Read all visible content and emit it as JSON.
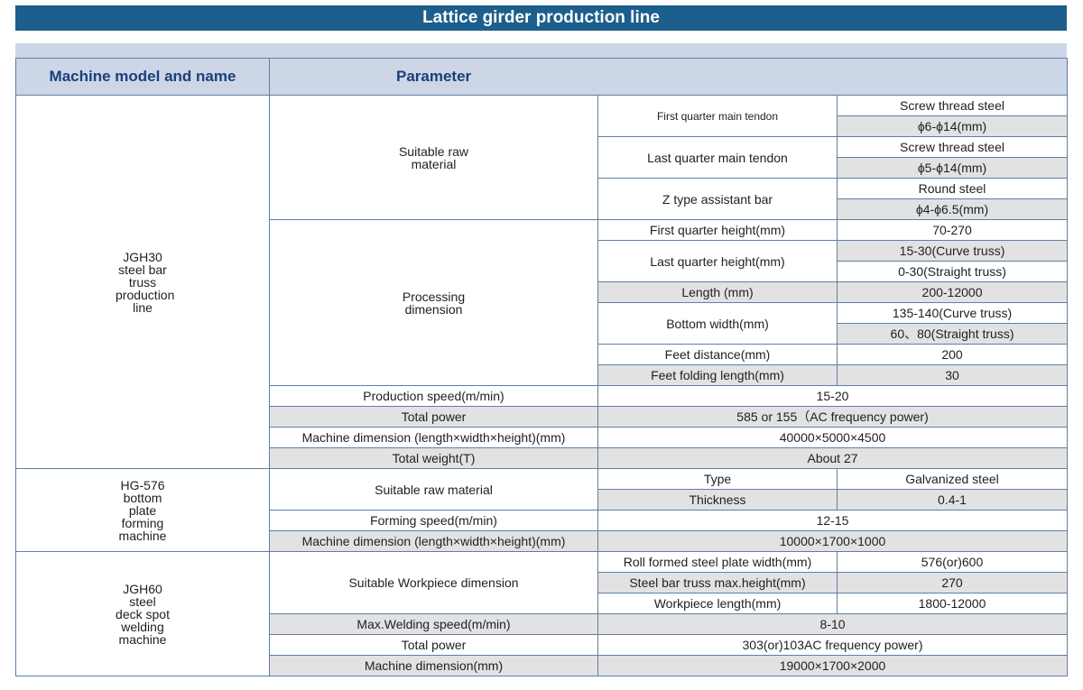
{
  "title": "Lattice girder production line",
  "header": {
    "model": "Machine model and name",
    "parameter": "Parameter"
  },
  "machines": {
    "m1": {
      "name": "JGH30 steel bar truss production line",
      "raw_material": {
        "label": "Suitable raw material",
        "first_quarter": {
          "label": "First quarter main tendon",
          "v1": "Screw thread steel",
          "v2": "ϕ6-ϕ14(mm)"
        },
        "last_quarter": {
          "label": "Last quarter main tendon",
          "v1": "Screw thread steel",
          "v2": "ϕ5-ϕ14(mm)"
        },
        "z_bar": {
          "label": "Z type assistant bar",
          "v1": "Round steel",
          "v2": "ϕ4-ϕ6.5(mm)"
        }
      },
      "processing": {
        "label": "Processing dimension",
        "first_height": {
          "label": "First quarter height(mm)",
          "v": "70-270"
        },
        "last_height": {
          "label": "Last quarter height(mm)",
          "v1": "15-30(Curve truss)",
          "v2": "0-30(Straight truss)"
        },
        "length": {
          "label": "Length (mm)",
          "v": "200-12000"
        },
        "bottom_width": {
          "label": "Bottom width(mm)",
          "v1": "135-140(Curve truss)",
          "v2": "60、80(Straight truss)"
        },
        "feet_distance": {
          "label": "Feet distance(mm)",
          "v": "200"
        },
        "feet_folding": {
          "label": "Feet folding length(mm)",
          "v": "30"
        }
      },
      "production_speed": {
        "label": "Production speed(m/min)",
        "v": "15-20"
      },
      "total_power": {
        "label": "Total power",
        "v": "585 or 155（AC frequency power)"
      },
      "dimension": {
        "label": "Machine dimension (length×width×height)(mm)",
        "v": "40000×5000×4500"
      },
      "weight": {
        "label": "Total weight(T)",
        "v": "About 27"
      }
    },
    "m2": {
      "name": "HG-576 bottom plate forming machine",
      "raw_material": {
        "label": "Suitable raw material",
        "type": {
          "label": "Type",
          "v": "Galvanized steel"
        },
        "thickness": {
          "label": "Thickness",
          "v": "0.4-1"
        }
      },
      "forming_speed": {
        "label": "Forming speed(m/min)",
        "v": "12-15"
      },
      "dimension": {
        "label": "Machine dimension (length×width×height)(mm)",
        "v": "10000×1700×1000"
      }
    },
    "m3": {
      "name": "JGH60 steel deck spot welding machine",
      "workpiece": {
        "label": "Suitable Workpiece dimension",
        "plate_width": {
          "label": "Roll formed steel plate width(mm)",
          "v": "576(or)600"
        },
        "truss_height": {
          "label": "Steel bar truss max.height(mm)",
          "v": "270"
        },
        "length": {
          "label": "Workpiece length(mm)",
          "v": "1800-12000"
        }
      },
      "welding_speed": {
        "label": "Max.Welding speed(m/min)",
        "v": "8-10"
      },
      "total_power": {
        "label": "Total power",
        "v": "303(or)103AC frequency power)"
      },
      "dimension": {
        "label": "Machine dimension(mm)",
        "v": "19000×1700×2000"
      }
    }
  }
}
